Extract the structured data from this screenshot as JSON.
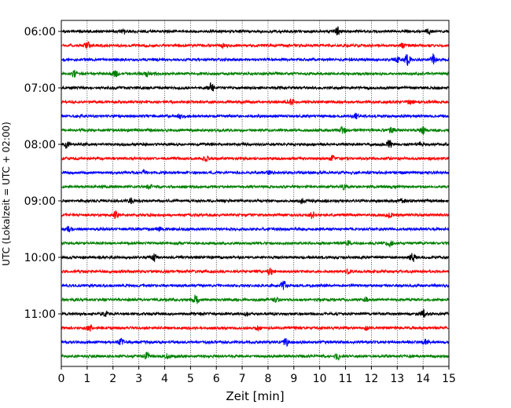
{
  "chart_data": {
    "type": "line",
    "title": "",
    "xlabel": "Zeit  [min]",
    "ylabel": "UTC (Lokalzeit = UTC + 02:00)",
    "xlim": [
      0,
      15
    ],
    "x_ticks": [
      0,
      1,
      2,
      3,
      4,
      5,
      6,
      7,
      8,
      9,
      10,
      11,
      12,
      13,
      14,
      15
    ],
    "x_grid": true,
    "y_tick_labels": [
      "06:00",
      "07:00",
      "08:00",
      "09:00",
      "10:00",
      "11:00"
    ],
    "trace_colors": [
      "#000000",
      "#ff0000",
      "#0000ff",
      "#008000"
    ],
    "trace_interval_min": 15,
    "series": [
      {
        "start": "06:00",
        "bursts": [
          [
            2.4,
            0.5
          ],
          [
            10.7,
            0.7
          ],
          [
            14.2,
            0.4
          ]
        ]
      },
      {
        "start": "06:15",
        "bursts": [
          [
            1.0,
            0.6
          ],
          [
            6.3,
            0.4
          ],
          [
            13.2,
            0.4
          ]
        ]
      },
      {
        "start": "06:30",
        "bursts": [
          [
            13.0,
            0.5
          ],
          [
            13.4,
            1.0
          ],
          [
            14.4,
            1.0
          ]
        ]
      },
      {
        "start": "06:45",
        "bursts": [
          [
            0.5,
            0.5
          ],
          [
            2.1,
            0.5
          ],
          [
            3.3,
            0.4
          ]
        ]
      },
      {
        "start": "07:00",
        "bursts": [
          [
            5.8,
            0.8
          ]
        ]
      },
      {
        "start": "07:15",
        "bursts": [
          [
            8.9,
            0.5
          ],
          [
            13.5,
            0.4
          ]
        ]
      },
      {
        "start": "07:30",
        "bursts": [
          [
            4.6,
            0.4
          ],
          [
            11.4,
            0.4
          ]
        ]
      },
      {
        "start": "07:45",
        "bursts": [
          [
            10.9,
            0.6
          ],
          [
            12.8,
            0.5
          ],
          [
            14.0,
            0.6
          ]
        ]
      },
      {
        "start": "08:00",
        "bursts": [
          [
            0.2,
            0.5
          ],
          [
            12.7,
            0.8
          ],
          [
            13.9,
            0.4
          ]
        ]
      },
      {
        "start": "08:15",
        "bursts": [
          [
            5.6,
            0.4
          ],
          [
            10.5,
            0.4
          ]
        ]
      },
      {
        "start": "08:30",
        "bursts": [
          [
            3.2,
            0.3
          ],
          [
            8.0,
            0.3
          ]
        ]
      },
      {
        "start": "08:45",
        "bursts": [
          [
            10.9,
            0.4
          ],
          [
            3.4,
            0.3
          ]
        ]
      },
      {
        "start": "09:00",
        "bursts": [
          [
            2.7,
            0.4
          ],
          [
            9.3,
            0.4
          ],
          [
            13.2,
            0.4
          ]
        ]
      },
      {
        "start": "09:15",
        "bursts": [
          [
            2.1,
            0.6
          ],
          [
            9.7,
            0.6
          ],
          [
            12.7,
            0.5
          ]
        ]
      },
      {
        "start": "09:30",
        "bursts": [
          [
            0.3,
            0.5
          ],
          [
            3.8,
            0.3
          ]
        ]
      },
      {
        "start": "09:45",
        "bursts": [
          [
            12.7,
            0.6
          ],
          [
            11.1,
            0.3
          ]
        ]
      },
      {
        "start": "10:00",
        "bursts": [
          [
            3.6,
            0.6
          ],
          [
            13.6,
            0.7
          ]
        ]
      },
      {
        "start": "10:15",
        "bursts": [
          [
            8.1,
            0.6
          ],
          [
            11.1,
            0.3
          ]
        ]
      },
      {
        "start": "10:30",
        "bursts": [
          [
            8.6,
            0.9
          ]
        ]
      },
      {
        "start": "10:45",
        "bursts": [
          [
            5.2,
            0.9
          ],
          [
            8.3,
            0.4
          ],
          [
            11.8,
            0.3
          ]
        ]
      },
      {
        "start": "11:00",
        "bursts": [
          [
            1.7,
            0.4
          ],
          [
            7.2,
            0.3
          ],
          [
            14.0,
            0.7
          ]
        ]
      },
      {
        "start": "11:15",
        "bursts": [
          [
            1.1,
            0.5
          ],
          [
            7.6,
            0.3
          ],
          [
            11.8,
            0.3
          ]
        ]
      },
      {
        "start": "11:30",
        "bursts": [
          [
            2.3,
            0.5
          ],
          [
            8.7,
            0.6
          ],
          [
            14.1,
            0.5
          ]
        ]
      },
      {
        "start": "11:45",
        "bursts": [
          [
            3.3,
            0.7
          ],
          [
            4.1,
            0.4
          ],
          [
            10.7,
            0.6
          ]
        ]
      }
    ]
  }
}
